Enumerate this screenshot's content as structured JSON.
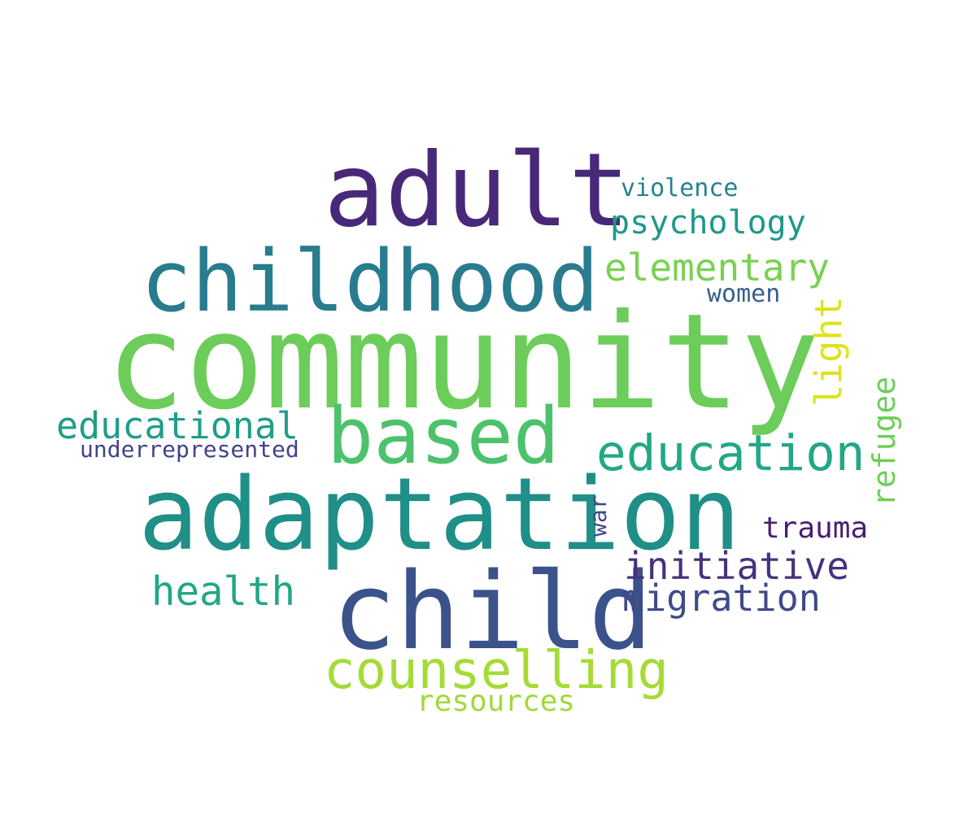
{
  "words": {
    "community": {
      "text": "community",
      "color": "#6ccd5a"
    },
    "adaptation": {
      "text": "adaptation",
      "color": "#1f8f88"
    },
    "child": {
      "text": "child",
      "color": "#3b528b"
    },
    "adult": {
      "text": "adult",
      "color": "#482878"
    },
    "childhood": {
      "text": "childhood",
      "color": "#287c8e"
    },
    "based": {
      "text": "based",
      "color": "#4cc26c"
    },
    "counselling": {
      "text": "counselling",
      "color": "#a5db36"
    },
    "education": {
      "text": "education",
      "color": "#22a884"
    },
    "educational": {
      "text": "educational",
      "color": "#1f9e89"
    },
    "elementary": {
      "text": "elementary",
      "color": "#7ad151"
    },
    "psychology": {
      "text": "psychology",
      "color": "#1f988b"
    },
    "initiative": {
      "text": "initiative",
      "color": "#46327e"
    },
    "migration": {
      "text": "migration",
      "color": "#3e4a89"
    },
    "health": {
      "text": "health",
      "color": "#22a785"
    },
    "trauma": {
      "text": "trauma",
      "color": "#481f70"
    },
    "resources": {
      "text": "resources",
      "color": "#a0da39"
    },
    "violence": {
      "text": "violence",
      "color": "#26828e"
    },
    "women": {
      "text": "women",
      "color": "#355f8d"
    },
    "underrepresented": {
      "text": "underrepresented",
      "color": "#414487"
    },
    "light": {
      "text": "light",
      "color": "#dde318"
    },
    "refugee": {
      "text": "refugee",
      "color": "#6ece58"
    },
    "war": {
      "text": "war",
      "color": "#3f4788"
    }
  }
}
